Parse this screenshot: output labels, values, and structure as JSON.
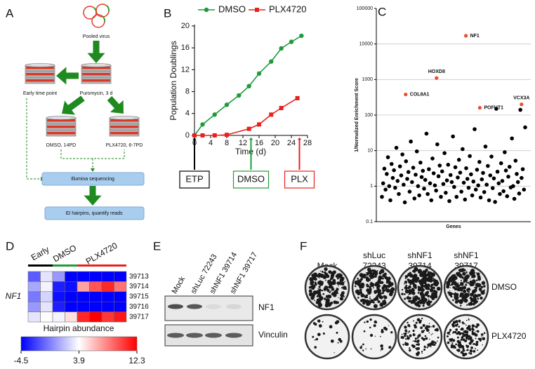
{
  "panel_labels": [
    "A",
    "B",
    "C",
    "D",
    "E",
    "F"
  ],
  "diagram": {
    "pooled_virus": "Pooled virus",
    "puromycin": "Puromycin, 3 d",
    "early": "Early time point",
    "dmso": "DMSO, 14PD",
    "plx": "PLX4720, 6-7PD",
    "sequencing": "Illumina sequencing",
    "quantify": "ID hairpins, quantify reads"
  },
  "chart_data": [
    {
      "type": "line",
      "ylabel": "Population Doublings",
      "xlabel": "Time (d)",
      "xlim": [
        0,
        28
      ],
      "xticks": [
        0,
        4,
        8,
        12,
        16,
        20,
        24,
        28
      ],
      "ylim": [
        0,
        20
      ],
      "yticks": [
        0,
        4,
        8,
        12,
        16,
        20
      ],
      "legend": "top",
      "series": [
        {
          "name": "DMSO",
          "color": "#1f9a3c",
          "marker": "circle",
          "x": [
            0,
            2,
            5,
            8,
            11,
            13.5,
            16,
            19,
            21.5,
            24,
            26.5
          ],
          "values": [
            0,
            2,
            3.8,
            5.6,
            7.3,
            9,
            11.3,
            13.5,
            15.9,
            17.1,
            18.2
          ]
        },
        {
          "name": "PLX4720",
          "color": "#e8211d",
          "marker": "square",
          "x": [
            0,
            2,
            5,
            8,
            13.5,
            16,
            19,
            21.5,
            25.5
          ],
          "values": [
            0,
            0,
            0,
            0.1,
            1.2,
            2,
            3.8,
            5,
            6.8
          ]
        }
      ],
      "annotations": [
        {
          "text": "ETP",
          "x": 0,
          "color": "#000000"
        },
        {
          "text": "DMSO",
          "x": 14,
          "color": "#1f9a3c"
        },
        {
          "text": "PLX",
          "x": 26,
          "color": "#e8211d"
        }
      ]
    },
    {
      "type": "scatter",
      "ylabel": "1/Normalized Enrichment Score",
      "xlabel": "Genes",
      "log_y": true,
      "ylim": [
        0.1,
        100000
      ],
      "yticks": [
        0.1,
        1,
        10,
        100,
        1000,
        10000,
        100000
      ],
      "grid": true,
      "color": "#000000",
      "values": [
        0.5,
        1.2,
        3.1,
        0.8,
        2.2,
        6.5,
        1.0,
        0.4,
        4.2,
        1.7,
        2.8,
        0.9,
        12,
        1.4,
        0.6,
        3.6,
        2.0,
        7.8,
        1.1,
        0.35,
        5.0,
        1.6,
        2.5,
        0.7,
        18,
        1.3,
        3.3,
        0.45,
        2.1,
        9.5,
        1.0,
        0.55,
        4.6,
        1.8,
        2.7,
        0.85,
        1.5,
        30,
        0.6,
        3.0,
        1.2,
        0.4,
        6.0,
        2.3,
        1.05,
        0.75,
        15,
        1.9,
        3.8,
        0.5,
        2.6,
        1.15,
        8.5,
        0.65,
        1.45,
        4.0,
        0.38,
        2.05,
        1.3,
        25,
        0.95,
        3.4,
        0.5,
        1.75,
        5.5,
        2.4,
        0.7,
        11,
        1.25,
        0.42,
        3.2,
        1.6,
        0.9,
        7.0,
        2.15,
        0.55,
        1.35,
        40,
        0.8,
        2.9,
        1.05,
        4.8,
        0.48,
        1.55,
        2.35,
        0.68,
        13,
        1.1,
        3.7,
        0.4,
        2.0,
        6.8,
        0.88,
        1.65,
        0.36,
        150,
        2.55,
        1.2,
        0.6,
        4.4,
        1.4,
        0.72,
        9,
        2.75,
        0.52,
        1.85,
        3.5,
        0.92,
        22,
        1.0,
        0.44,
        5.2,
        2.2,
        1.3,
        0.62,
        140,
        1.7,
        3.0,
        0.8,
        45
      ],
      "highlights": {
        "color": "#ef4a2f",
        "labels": [
          "COL8A1",
          "HOXD8",
          "NF1",
          "POFUT1",
          "VCX3A"
        ],
        "values": [
          380,
          1100,
          17000,
          160,
          200
        ]
      }
    },
    {
      "type": "heatmap",
      "ylabel": "NF1",
      "column_groups": [
        {
          "label": "Early",
          "color": "#000000",
          "span": 2
        },
        {
          "label": "DMSO",
          "color": "#1f9a3c",
          "span": 2
        },
        {
          "label": "PLX4720",
          "color": "#e8211d",
          "span": 4
        }
      ],
      "rows": [
        "39713",
        "39714",
        "39715",
        "39716",
        "39717"
      ],
      "values": [
        [
          -1.5,
          3,
          0.5,
          -4.5,
          -4.5,
          -4.5,
          -4.5,
          -4.5
        ],
        [
          1,
          3.5,
          -3.5,
          -4,
          7,
          9.5,
          11,
          8.5
        ],
        [
          -0.5,
          2.5,
          -4,
          -4.5,
          -4.5,
          -4.5,
          -4.5,
          -4.5
        ],
        [
          0.5,
          3,
          -3.5,
          -4.5,
          -4.5,
          -4.5,
          -4.5,
          -4.5
        ],
        [
          3,
          4,
          3.5,
          5,
          11,
          12.3,
          10.5,
          11.5
        ]
      ],
      "colorbar_label": "Hairpin abundance",
      "zlim": [
        -4.5,
        12.3
      ],
      "zticks": [
        -4.5,
        3.9,
        12.3
      ],
      "colors": [
        "#0000ff",
        "#ffffff",
        "#ff0000"
      ]
    }
  ],
  "blot": {
    "lanes": [
      "Mock",
      "shLuc 72243",
      "shNF1 39714",
      "shNF1 39717"
    ],
    "bands": [
      "NF1",
      "Vinculin"
    ]
  },
  "plates": {
    "columns": [
      [
        "Mock"
      ],
      [
        "shLuc",
        "72243"
      ],
      [
        "shNF1",
        "39714"
      ],
      [
        "shNF1",
        "39717"
      ]
    ],
    "rows": [
      "DMSO",
      "PLX4720"
    ]
  }
}
